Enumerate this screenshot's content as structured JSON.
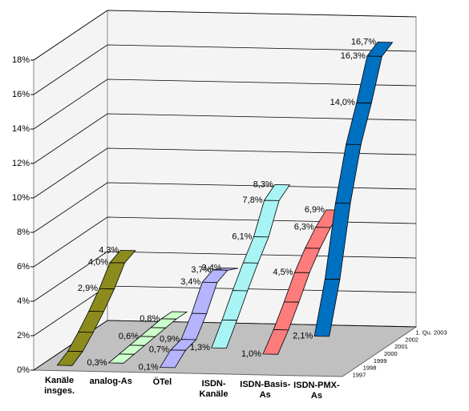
{
  "chart_data": {
    "type": "ribbon3d",
    "categories": [
      "1997",
      "1998",
      "1999",
      "2000",
      "2001",
      "2002",
      "1. Qu. 2003"
    ],
    "series": [
      {
        "name": "Kanäle insges.",
        "color": "#8c8c1e",
        "values": [
          0.1,
          0.5,
          1.2,
          2.0,
          2.9,
          4.0,
          4.3
        ],
        "value_labels": [
          null,
          null,
          null,
          null,
          "2,9%",
          "4,0%",
          "4,3%"
        ]
      },
      {
        "name": "analog-As",
        "color": "#ccffcc",
        "values": [
          0.3,
          0.4,
          0.5,
          0.6,
          0.7,
          0.8,
          0.8
        ],
        "value_labels": [
          "0,3%",
          null,
          null,
          "0,6%",
          null,
          "0,8%",
          null
        ]
      },
      {
        "name": "ÖTel",
        "color": "#b4b4ff",
        "values": [
          0.1,
          0.7,
          0.9,
          2.0,
          3.4,
          3.7,
          3.4
        ],
        "value_labels": [
          "0,1%",
          "0,7%",
          "0,9%",
          null,
          "3,4%",
          "3,7%",
          "3,4%"
        ]
      },
      {
        "name": "ISDN-Kanäle",
        "color": "#a8f4f4",
        "values": [
          1.3,
          2.5,
          3.8,
          5.0,
          6.1,
          7.8,
          8.3
        ],
        "value_labels": [
          "1,3%",
          null,
          null,
          null,
          "6,1%",
          "7,8%",
          "8,3%"
        ]
      },
      {
        "name": "ISDN-Basis-As",
        "color": "#ff7c7c",
        "values": [
          1.0,
          2.0,
          3.2,
          4.5,
          5.5,
          6.3,
          6.9
        ],
        "value_labels": [
          "1,0%",
          null,
          null,
          "4,5%",
          null,
          "6,3%",
          "6,9%"
        ]
      },
      {
        "name": "ISDN-PMX-As",
        "color": "#0070c0",
        "values": [
          2.1,
          5.0,
          9.0,
          12.0,
          14.0,
          16.3,
          16.7
        ],
        "value_labels": [
          "2,1%",
          null,
          null,
          null,
          "14,0%",
          "16,3%",
          "16,7%"
        ]
      }
    ],
    "ylim": [
      0,
      18
    ],
    "yticks": [
      {
        "value": 0,
        "label": "0%"
      },
      {
        "value": 2,
        "label": "2%"
      },
      {
        "value": 4,
        "label": "4%"
      },
      {
        "value": 6,
        "label": "6%"
      },
      {
        "value": 8,
        "label": "8%"
      },
      {
        "value": 10,
        "label": "10%"
      },
      {
        "value": 12,
        "label": "12%"
      },
      {
        "value": 14,
        "label": "14%"
      },
      {
        "value": 16,
        "label": "16%"
      },
      {
        "value": 18,
        "label": "18%"
      }
    ],
    "grid": true
  }
}
